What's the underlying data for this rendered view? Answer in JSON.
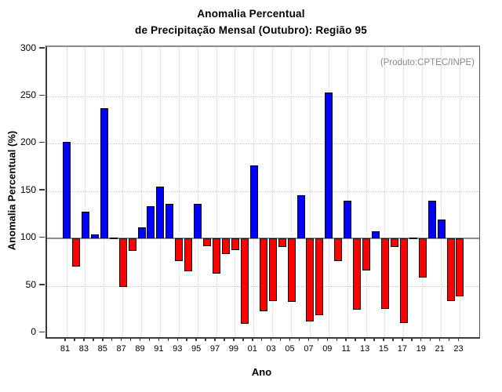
{
  "title": {
    "line1": "Anomalia Percentual",
    "line2": "de Precipitação Mensal (Outubro): Região 95"
  },
  "annotation": "(Produto:CPTEC/INPE)",
  "chart_data": {
    "type": "bar",
    "title": "Anomalia Percentual de Precipitação Mensal (Outubro): Região 95",
    "xlabel": "Ano",
    "ylabel": "Anomalia Percentual (%)",
    "ylim": [
      0,
      300
    ],
    "yticks": [
      0,
      50,
      100,
      150,
      200,
      250,
      300
    ],
    "baseline": 100,
    "grid": "dotted-both-axes",
    "legend": "none",
    "visible_x_tick_labels": [
      "81",
      "83",
      "85",
      "87",
      "89",
      "91",
      "93",
      "95",
      "97",
      "99",
      "01",
      "03",
      "05",
      "07",
      "09",
      "11",
      "13",
      "15",
      "17",
      "19",
      "21",
      "23"
    ],
    "categories": [
      "81",
      "82",
      "83",
      "84",
      "85",
      "86",
      "87",
      "88",
      "89",
      "90",
      "91",
      "92",
      "93",
      "94",
      "95",
      "96",
      "97",
      "98",
      "99",
      "00",
      "01",
      "02",
      "03",
      "04",
      "05",
      "06",
      "07",
      "08",
      "09",
      "10",
      "11",
      "12",
      "13",
      "14",
      "15",
      "16",
      "17",
      "18",
      "19",
      "20",
      "21",
      "22",
      "23"
    ],
    "values": [
      202,
      70,
      128,
      104,
      238,
      100,
      49,
      87,
      112,
      134,
      155,
      137,
      76,
      65,
      137,
      92,
      63,
      84,
      88,
      10,
      177,
      23,
      34,
      91,
      33,
      146,
      12,
      19,
      254,
      76,
      140,
      25,
      66,
      108,
      26,
      91,
      11,
      100,
      59,
      140,
      120,
      34,
      39
    ],
    "colors": {
      "above_baseline": "#0000ff",
      "below_baseline": "#ff0000",
      "baseline_line": "#8c8c8c",
      "annotation_text": "#8a8a8a"
    }
  }
}
